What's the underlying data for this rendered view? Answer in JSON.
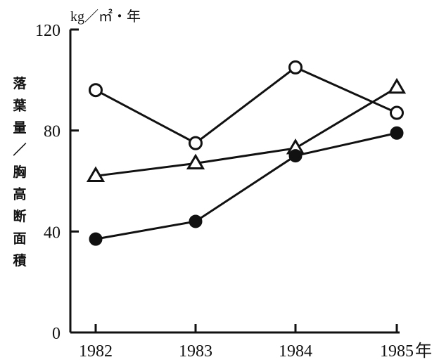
{
  "chart_data": {
    "type": "line",
    "title": "",
    "unit_label": "kg／㎡・年",
    "ylabel": "落葉量／胸高断面積",
    "xlabel_suffix": "年",
    "x": [
      1982,
      1983,
      1984,
      1985
    ],
    "x_tick_labels": [
      "1982",
      "1983",
      "1984",
      "1985"
    ],
    "y_ticks": [
      0,
      40,
      80,
      120
    ],
    "y_tick_labels": [
      "0",
      "40",
      "80",
      "120"
    ],
    "ylim": [
      0,
      120
    ],
    "grid": false,
    "legend": "none",
    "series": [
      {
        "marker": "open-circle",
        "values": [
          96,
          75,
          105,
          87
        ]
      },
      {
        "marker": "open-triangle",
        "values": [
          62,
          67,
          73,
          97
        ]
      },
      {
        "marker": "filled-circle",
        "values": [
          37,
          44,
          70,
          79
        ]
      }
    ]
  }
}
